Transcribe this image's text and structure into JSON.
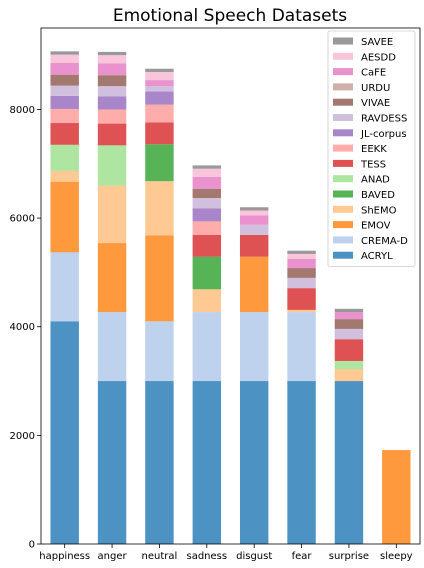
{
  "chart_data": {
    "type": "bar",
    "stacked": true,
    "title": "Emotional Speech Datasets",
    "xlabel": "",
    "ylabel": "",
    "ylim": [
      0,
      9500
    ],
    "yticks": [
      0,
      2000,
      4000,
      6000,
      8000
    ],
    "grid": false,
    "legend": "top-right",
    "categories": [
      "happiness",
      "anger",
      "neutral",
      "sadness",
      "disgust",
      "fear",
      "surprise",
      "sleepy"
    ],
    "series": [
      {
        "name": "ACRYL",
        "color": "#1f77b4",
        "values": [
          4100,
          3000,
          3000,
          3000,
          3000,
          3000,
          3000,
          0
        ]
      },
      {
        "name": "CREMA-D",
        "color": "#aec7e8",
        "values": [
          1270,
          1270,
          1100,
          1270,
          1270,
          1270,
          0,
          0
        ]
      },
      {
        "name": "EMOV",
        "color": "#ff7f0e",
        "values": [
          1300,
          1270,
          1580,
          0,
          1020,
          0,
          0,
          1730
        ]
      },
      {
        "name": "ShEMO",
        "color": "#ffbb78",
        "values": [
          200,
          1060,
          1000,
          420,
          0,
          40,
          220,
          0
        ]
      },
      {
        "name": "BAVED",
        "color": "#2ca02c",
        "values": [
          0,
          0,
          680,
          600,
          0,
          0,
          0,
          0
        ]
      },
      {
        "name": "ANAD",
        "color": "#98df8a",
        "values": [
          480,
          740,
          0,
          0,
          0,
          0,
          150,
          0
        ]
      },
      {
        "name": "TESS",
        "color": "#d62728",
        "values": [
          400,
          400,
          400,
          400,
          400,
          400,
          400,
          0
        ]
      },
      {
        "name": "EEKK",
        "color": "#ff9896",
        "values": [
          260,
          260,
          330,
          250,
          0,
          0,
          0,
          0
        ]
      },
      {
        "name": "JL-corpus",
        "color": "#9467bd",
        "values": [
          240,
          240,
          240,
          240,
          0,
          0,
          0,
          0
        ]
      },
      {
        "name": "RAVDESS",
        "color": "#c5b0d5",
        "values": [
          190,
          190,
          100,
          190,
          190,
          190,
          190,
          0
        ]
      },
      {
        "name": "VIVAE",
        "color": "#8c564b",
        "values": [
          200,
          200,
          0,
          170,
          0,
          180,
          180,
          0
        ]
      },
      {
        "name": "URDU",
        "color": "#c49c94",
        "values": [
          0,
          0,
          0,
          0,
          0,
          0,
          0,
          0
        ]
      },
      {
        "name": "CaFE",
        "color": "#e377c2",
        "values": [
          220,
          220,
          110,
          220,
          170,
          170,
          130,
          0
        ]
      },
      {
        "name": "AESDD",
        "color": "#f7b6d2",
        "values": [
          150,
          150,
          150,
          150,
          90,
          90,
          0,
          0
        ]
      },
      {
        "name": "SAVEE",
        "color": "#7f7f7f",
        "values": [
          60,
          60,
          60,
          60,
          60,
          60,
          60,
          0
        ]
      }
    ]
  }
}
